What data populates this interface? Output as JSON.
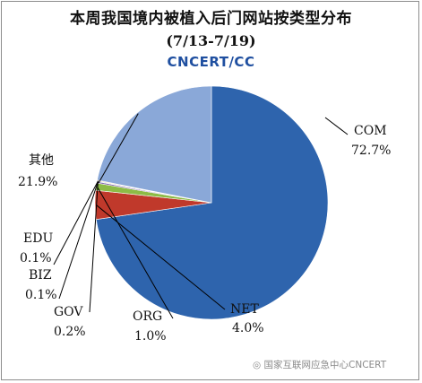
{
  "chart_data": {
    "type": "pie",
    "title": "本周我国境内被植入后门网站按类型分布",
    "subtitle": "(7/13-7/19)",
    "slices": [
      {
        "name": "COM",
        "label": "72.7%",
        "value": 72.7,
        "color": "#2e64ad"
      },
      {
        "name": "NET",
        "label": "4.0%",
        "value": 4.0,
        "color": "#c0392b"
      },
      {
        "name": "ORG",
        "label": "1.0%",
        "value": 1.0,
        "color": "#8dbb46"
      },
      {
        "name": "GOV",
        "label": "0.2%",
        "value": 0.2,
        "color": "#7e5aa8"
      },
      {
        "name": "BIZ",
        "label": "0.1%",
        "value": 0.1,
        "color": "#3aa0c8"
      },
      {
        "name": "EDU",
        "label": "0.1%",
        "value": 0.1,
        "color": "#f08a24"
      },
      {
        "name": "其他",
        "label": "21.9%",
        "value": 21.9,
        "color": "#8aa8d8"
      }
    ]
  },
  "logo_text": "CNCERT/CC",
  "watermark": "国家互联网应急中心CNCERT"
}
